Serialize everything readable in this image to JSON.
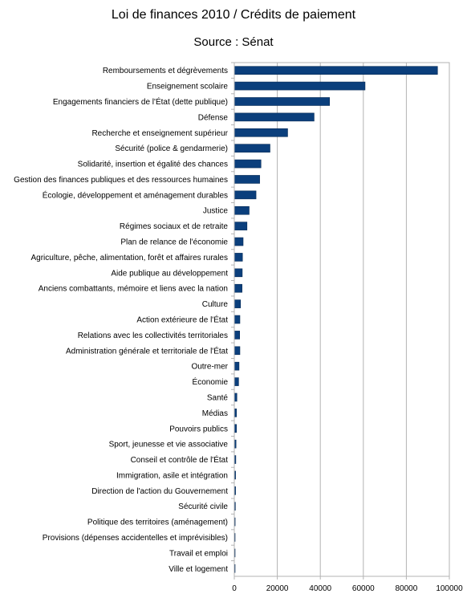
{
  "chart_data": {
    "type": "bar",
    "orientation": "horizontal",
    "title": "Loi de finances 2010 / Crédits de paiement",
    "subtitle": "Source : Sénat",
    "xlim": [
      0,
      100000
    ],
    "x_ticks": [
      "0",
      "20000",
      "40000",
      "60000",
      "80000",
      "100000"
    ],
    "grid": "vertical",
    "bar_color": "#0b3f7c",
    "categories": [
      "Remboursements et dégrèvements",
      "Enseignement scolaire",
      "Engagements financiers de l'État (dette publique)",
      "Défense",
      "Recherche et enseignement supérieur",
      "Sécurité (police & gendarmerie)",
      "Solidarité, insertion et égalité des chances",
      "Gestion des finances publiques et des ressources humaines",
      "Écologie, développement et aménagement durables",
      "Justice",
      "Régimes sociaux et de retraite",
      "Plan de relance de l'économie",
      "Agriculture, pêche, alimentation, forêt et affaires rurales",
      "Aide publique au développement",
      "Anciens combattants, mémoire et liens avec la nation",
      "Culture",
      "Action extérieure de l'État",
      "Relations avec les collectivités territoriales",
      "Administration générale et territoriale de l'État",
      "Outre-mer",
      "Économie",
      "Santé",
      "Médias",
      "Pouvoirs publics",
      "Sport, jeunesse et vie associative",
      "Conseil et contrôle de l'État",
      "Immigration, asile et intégration",
      "Direction de l'action du Gouvernement",
      "Sécurité civile",
      "Politique des territoires (aménagement)",
      "Provisions (dépenses accidentelles et imprévisibles)",
      "Travail et emploi",
      "Ville et logement"
    ],
    "values": [
      94500,
      60800,
      44300,
      37100,
      24800,
      16600,
      12400,
      11800,
      10100,
      6900,
      5900,
      4100,
      3800,
      3700,
      3600,
      2900,
      2600,
      2500,
      2600,
      2200,
      2000,
      1200,
      1000,
      1000,
      800,
      700,
      600,
      600,
      500,
      400,
      100,
      100,
      100
    ]
  }
}
